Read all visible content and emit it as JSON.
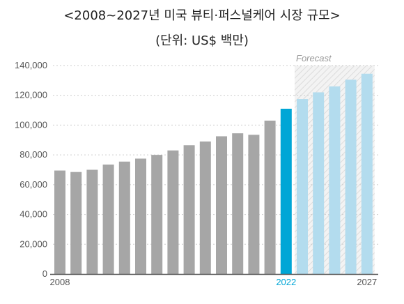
{
  "title": "<2008~2027년 미국 뷰티·퍼스널케어 시장 규모>",
  "subtitle": "(단위: US$ 백만)",
  "colors": {
    "historical": "#a6a6a6",
    "highlight": "#00a6d6",
    "forecast": "#b3dcee",
    "highlight_label": "#00a6d6",
    "grid": "#cccccc",
    "axis": "#555555"
  },
  "chart_data": {
    "type": "bar",
    "title": "<2008~2027년 미국 뷰티·퍼스널케어 시장 규모>",
    "subtitle": "(단위: US$ 백만)",
    "xlabel": "",
    "ylabel": "",
    "categories": [
      "2008",
      "2009",
      "2010",
      "2011",
      "2012",
      "2013",
      "2014",
      "2015",
      "2016",
      "2017",
      "2018",
      "2019",
      "2020",
      "2021",
      "2022",
      "2023",
      "2024",
      "2025",
      "2026",
      "2027"
    ],
    "values": [
      69500,
      68500,
      70000,
      73500,
      75500,
      77500,
      80000,
      83000,
      86500,
      89000,
      92500,
      94500,
      93500,
      103000,
      111000,
      117500,
      122000,
      126000,
      130500,
      134500
    ],
    "bar_kind": [
      "historical",
      "historical",
      "historical",
      "historical",
      "historical",
      "historical",
      "historical",
      "historical",
      "historical",
      "historical",
      "historical",
      "historical",
      "historical",
      "historical",
      "highlight",
      "forecast",
      "forecast",
      "forecast",
      "forecast",
      "forecast"
    ],
    "ylim": [
      0,
      140000
    ],
    "yticks": [
      0,
      20000,
      40000,
      60000,
      80000,
      100000,
      120000,
      140000
    ],
    "ytick_labels": [
      "0",
      "20,000",
      "40,000",
      "60,000",
      "80,000",
      "100,000",
      "120,000",
      "140,000"
    ],
    "x_tick_labels": [
      {
        "category": "2008",
        "label": "2008"
      },
      {
        "category": "2022",
        "label": "2022"
      },
      {
        "category": "2027",
        "label": "2027"
      }
    ],
    "forecast_label": "Forecast",
    "forecast_start": "2023",
    "forecast_end": "2027",
    "grid": "dotted-horizontal"
  }
}
